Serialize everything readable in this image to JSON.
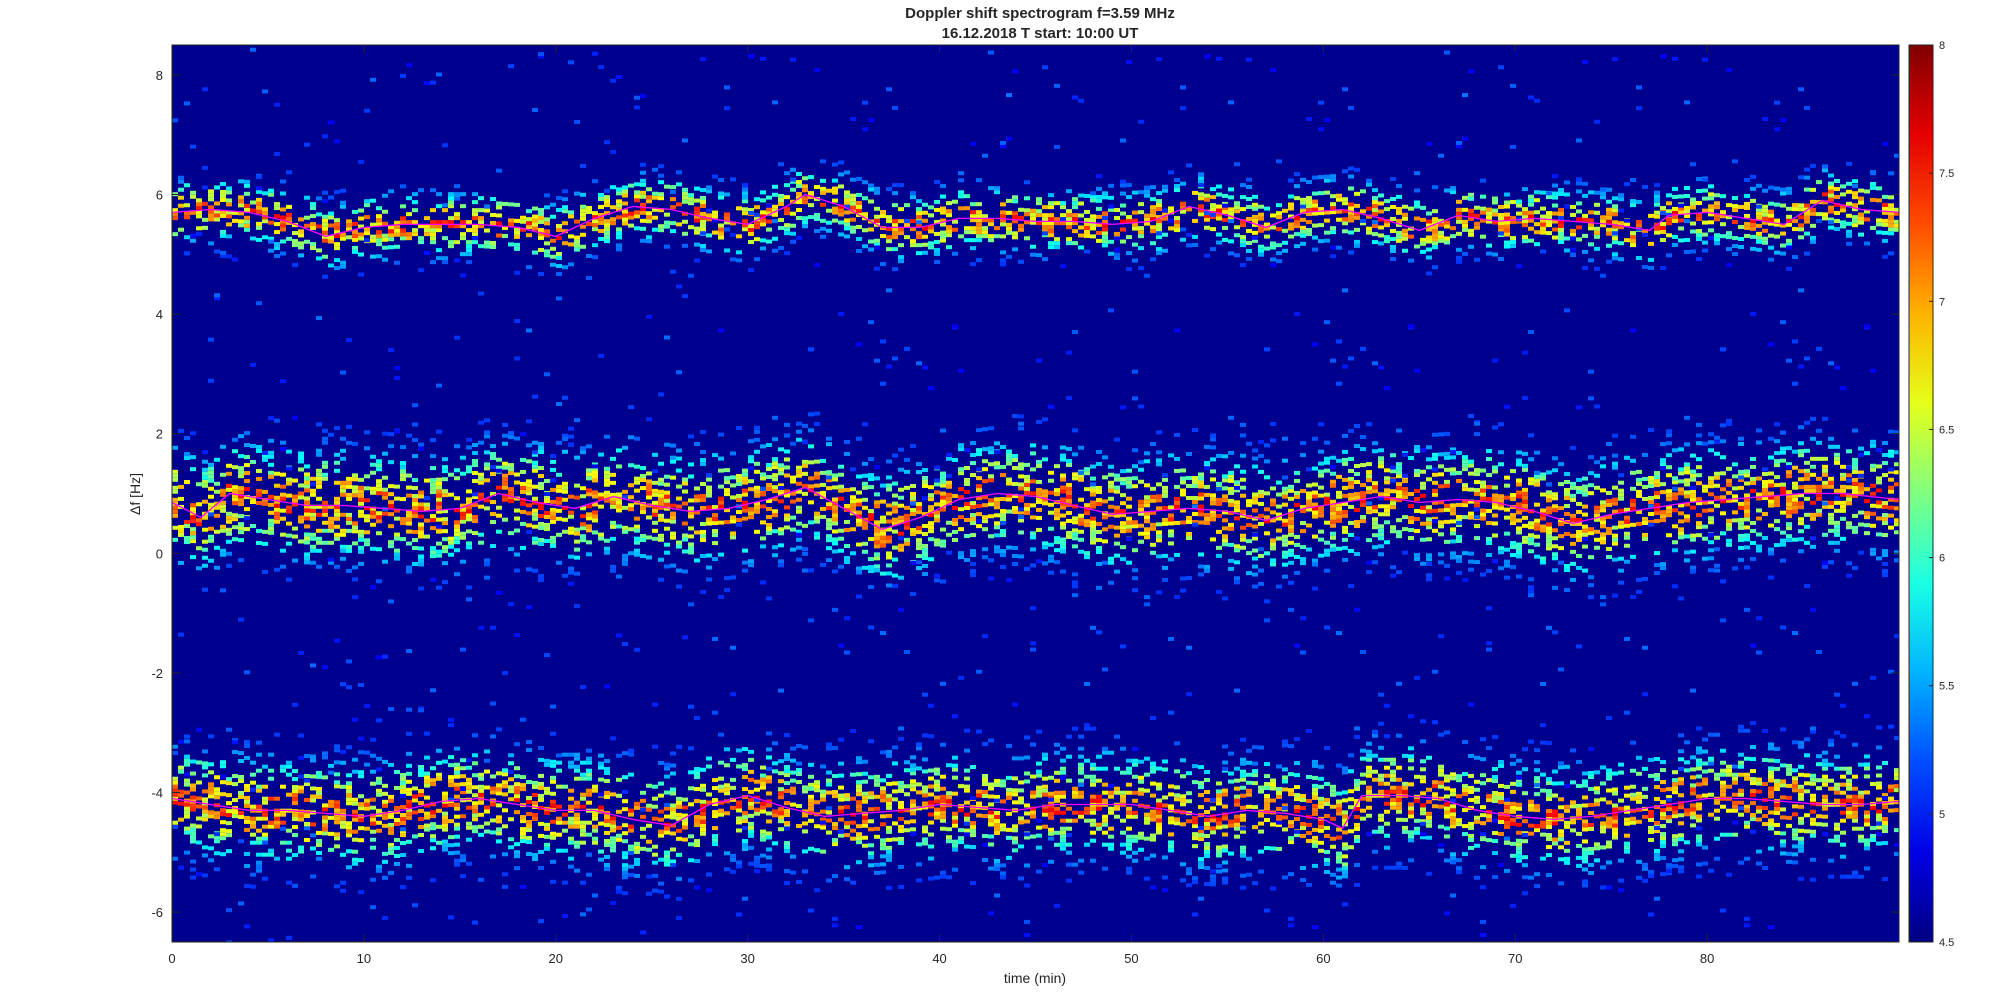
{
  "chart_data": {
    "type": "heatmap",
    "title": "Doppler shift spectrogram f=3.59 MHz",
    "subtitle": "16.12.2018   T start: 10:00 UT",
    "xlabel": "time (min)",
    "ylabel": "Δf [Hz]",
    "xlim": [
      0,
      90
    ],
    "ylim": [
      -6.5,
      8.5
    ],
    "xticks": [
      0,
      10,
      20,
      30,
      40,
      50,
      60,
      70,
      80
    ],
    "yticks": [
      -6,
      -4,
      -2,
      0,
      2,
      4,
      6,
      8
    ],
    "colorbar": {
      "colormap": "jet",
      "limits": [
        4.5,
        8
      ],
      "ticks": [
        4.5,
        5,
        5.5,
        6,
        6.5,
        7,
        7.5,
        8
      ],
      "background_color": "#00008f"
    },
    "grid": false,
    "series": [
      {
        "x": [
          0,
          2,
          4,
          6,
          8,
          10,
          12,
          14,
          16,
          18,
          20,
          22,
          24,
          26,
          28,
          30,
          32,
          33,
          35,
          37,
          39,
          41,
          43,
          45,
          47,
          49,
          51,
          53,
          55,
          57,
          59,
          61,
          63,
          65,
          67,
          69,
          71,
          73,
          75,
          77,
          78,
          80,
          82,
          84,
          86,
          88,
          90
        ],
        "values": [
          5.7,
          5.75,
          5.7,
          5.55,
          5.3,
          5.45,
          5.5,
          5.5,
          5.5,
          5.45,
          5.3,
          5.6,
          5.8,
          5.75,
          5.6,
          5.5,
          5.8,
          6.0,
          5.8,
          5.45,
          5.45,
          5.6,
          5.6,
          5.55,
          5.55,
          5.5,
          5.55,
          5.8,
          5.65,
          5.45,
          5.7,
          5.75,
          5.6,
          5.4,
          5.65,
          5.55,
          5.6,
          5.55,
          5.5,
          5.4,
          5.65,
          5.7,
          5.6,
          5.5,
          5.9,
          5.75,
          5.7
        ],
        "color": "#ff00ff"
      },
      {
        "x": [
          0,
          1.5,
          3,
          5,
          7,
          9,
          11,
          13,
          15,
          17,
          19,
          21,
          23,
          25,
          27,
          29,
          31,
          33,
          35,
          37,
          39,
          41,
          43,
          45,
          47,
          49,
          51,
          53,
          55,
          57,
          59,
          61,
          63,
          65,
          67,
          69,
          71,
          73,
          75,
          77,
          79,
          81,
          83,
          85,
          87,
          90
        ],
        "values": [
          0.85,
          0.6,
          1.0,
          0.9,
          0.8,
          0.8,
          0.75,
          0.7,
          0.75,
          1.0,
          0.85,
          0.75,
          0.95,
          0.8,
          0.7,
          0.75,
          0.9,
          1.1,
          0.75,
          0.4,
          0.6,
          0.9,
          1.0,
          0.95,
          0.8,
          0.65,
          0.7,
          0.75,
          0.7,
          0.55,
          0.75,
          0.85,
          0.95,
          0.85,
          0.9,
          0.85,
          0.7,
          0.5,
          0.65,
          0.75,
          0.85,
          0.9,
          0.95,
          1.0,
          1.0,
          0.9
        ],
        "color": "#ff00ff"
      },
      {
        "x": [
          0,
          2,
          4,
          6,
          8,
          10,
          12,
          14,
          16,
          18,
          20,
          22,
          24,
          26,
          28,
          30,
          32,
          34,
          36,
          38,
          40,
          42,
          44,
          46,
          48,
          50,
          52,
          54,
          56,
          58,
          60,
          61,
          62,
          64,
          66,
          68,
          70,
          72,
          74,
          76,
          78,
          80,
          82,
          84,
          86,
          88,
          90
        ],
        "values": [
          -4.1,
          -4.2,
          -4.3,
          -4.3,
          -4.35,
          -4.4,
          -4.3,
          -4.15,
          -4.1,
          -4.2,
          -4.3,
          -4.3,
          -4.45,
          -4.55,
          -4.2,
          -4.05,
          -4.25,
          -4.4,
          -4.35,
          -4.3,
          -4.2,
          -4.25,
          -4.3,
          -4.2,
          -4.2,
          -4.2,
          -4.3,
          -4.4,
          -4.3,
          -4.35,
          -4.45,
          -4.6,
          -4.05,
          -4.05,
          -4.1,
          -4.3,
          -4.4,
          -4.45,
          -4.4,
          -4.3,
          -4.2,
          -4.1,
          -4.1,
          -4.15,
          -4.2,
          -4.2,
          -4.15
        ],
        "color": "#ff00ff"
      }
    ]
  }
}
